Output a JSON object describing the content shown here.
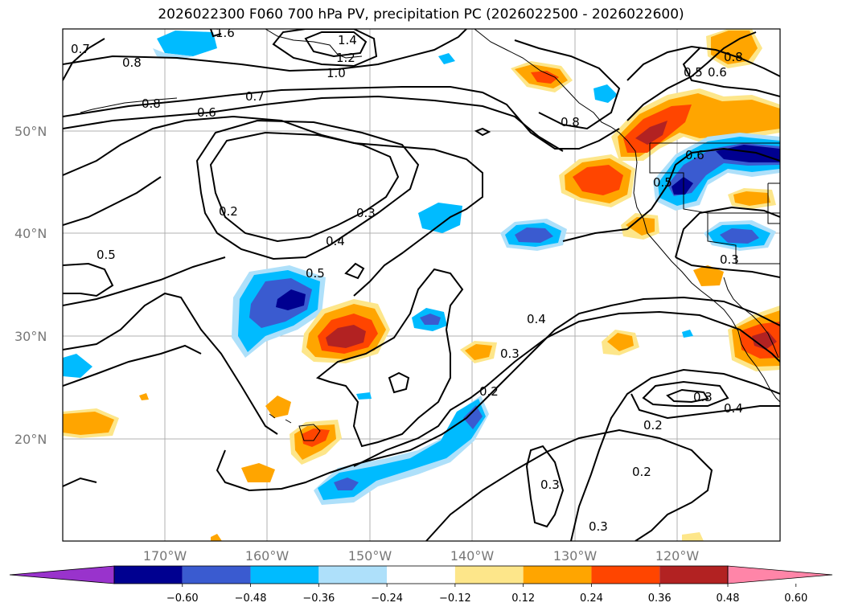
{
  "title": "2026022300 F060 700 hPa PV, precipitation PC (2026022500 - 2026022600)",
  "lat_labels": [
    "50°N",
    "40°N",
    "30°N",
    "20°N"
  ],
  "lon_labels": [
    "170°W",
    "160°W",
    "150°W",
    "140°W",
    "130°W",
    "120°W"
  ],
  "contour_labels": [
    "1.6",
    "1.4",
    "1.2",
    "1.0",
    "0.8",
    "0.8",
    "0.7",
    "0.7",
    "0.6",
    "0.8",
    "0.2",
    "0.3",
    "0.4",
    "0.5",
    "0.5",
    "0.6",
    "0.5",
    "0.6",
    "0.8",
    "0.5",
    "0.4",
    "0.3",
    "0.2",
    "0.2",
    "0.3",
    "0.4",
    "0.3",
    "0.2",
    "0.3",
    "0.3"
  ],
  "colorbar": {
    "ticks": [
      "−0.60",
      "−0.48",
      "−0.36",
      "−0.24",
      "−0.12",
      "0.12",
      "0.24",
      "0.36",
      "0.48",
      "0.60"
    ],
    "colors": [
      "#9933cc",
      "#000090",
      "#3a5bd0",
      "#00bbff",
      "#aee0fa",
      "#ffffff",
      "#fde68a",
      "#ffa500",
      "#ff4500",
      "#b22222",
      "#ff85a8"
    ]
  }
}
